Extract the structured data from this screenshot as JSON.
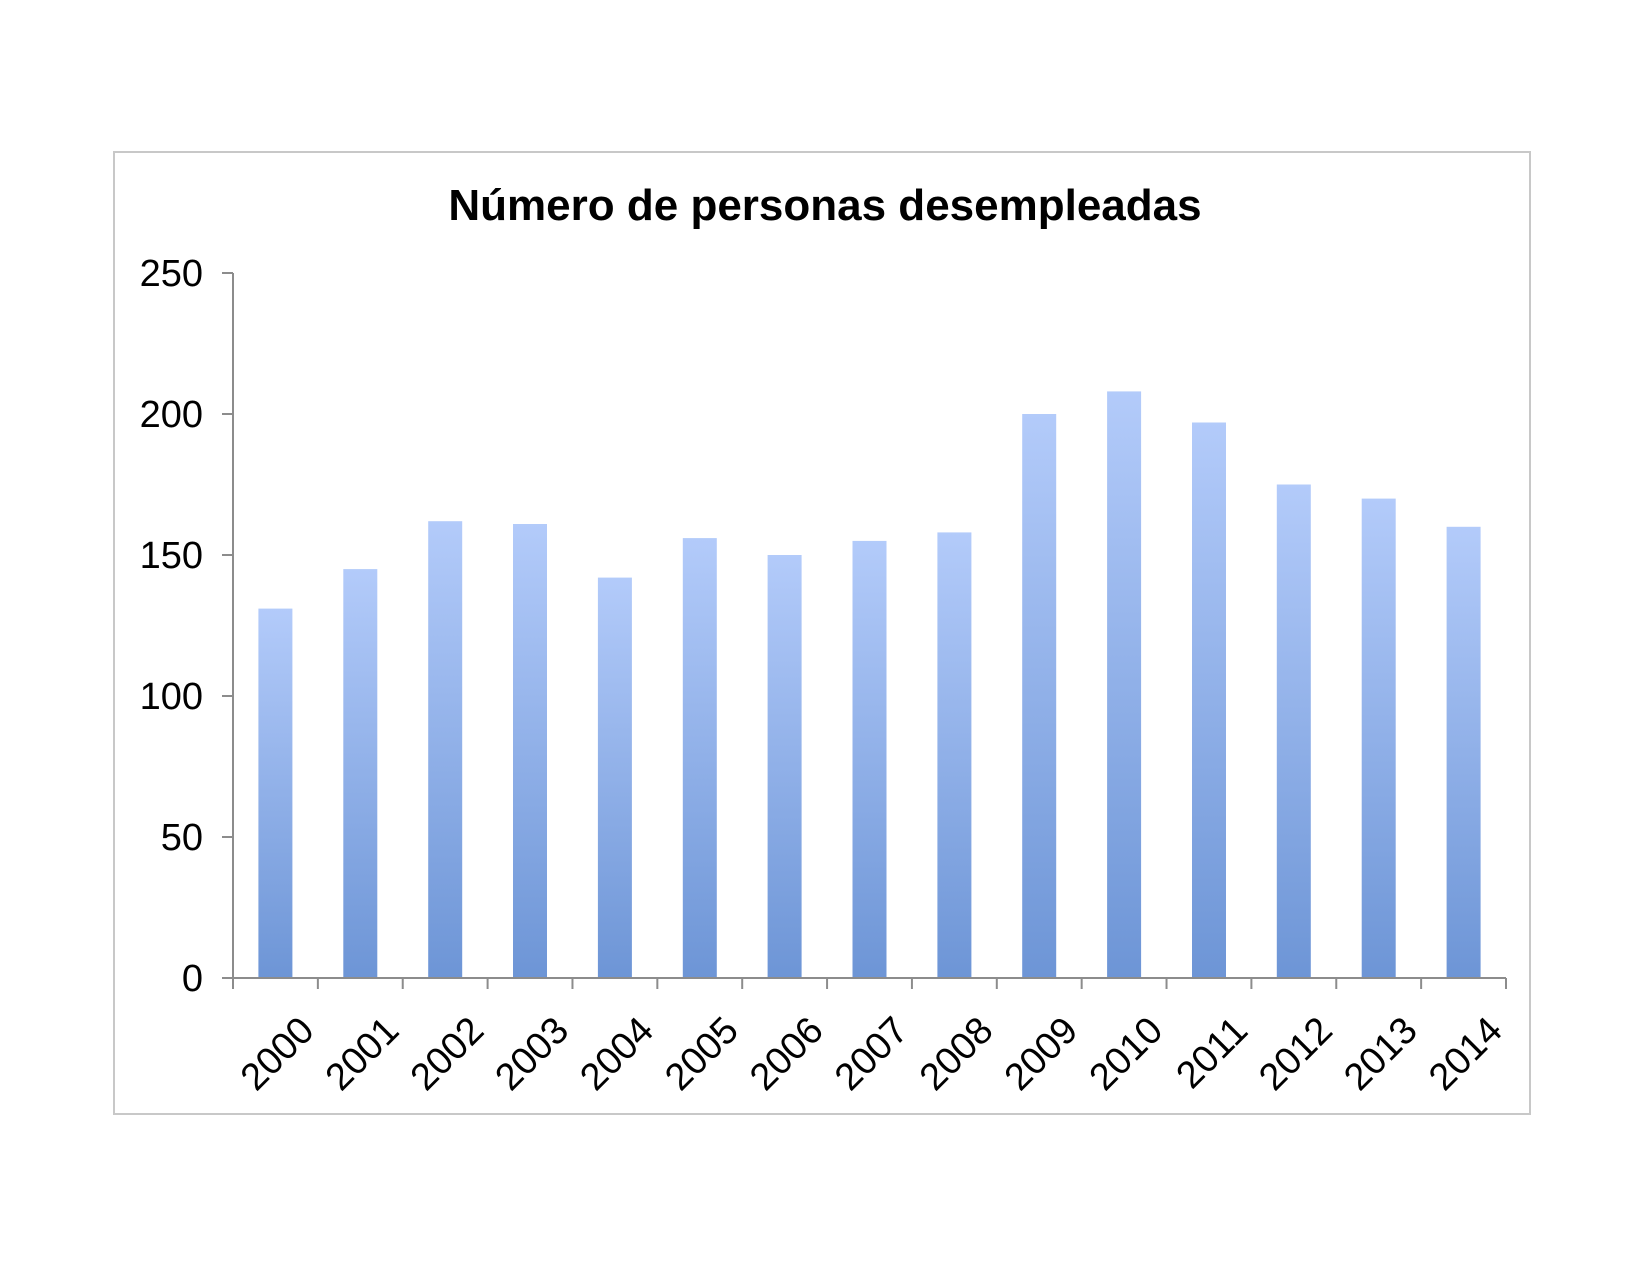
{
  "chart_data": {
    "type": "bar",
    "title": "Número de personas desempleadas",
    "xlabel": "",
    "ylabel": "",
    "categories": [
      "2000",
      "2001",
      "2002",
      "2003",
      "2004",
      "2005",
      "2006",
      "2007",
      "2008",
      "2009",
      "2010",
      "2011",
      "2012",
      "2013",
      "2014"
    ],
    "values": [
      131,
      145,
      162,
      161,
      142,
      156,
      150,
      155,
      158,
      200,
      208,
      197,
      175,
      170,
      160
    ],
    "ylim": [
      0,
      250
    ],
    "yticks": [
      0,
      50,
      100,
      150,
      200,
      250
    ],
    "ytick_labels": [
      "0",
      "50",
      "100",
      "150",
      "200",
      "250"
    ],
    "grid": false,
    "legend": "none",
    "bar_color_top": "#b3cbfa",
    "bar_color_bottom": "#6d95d6",
    "axis_color": "#8c8c8c"
  }
}
